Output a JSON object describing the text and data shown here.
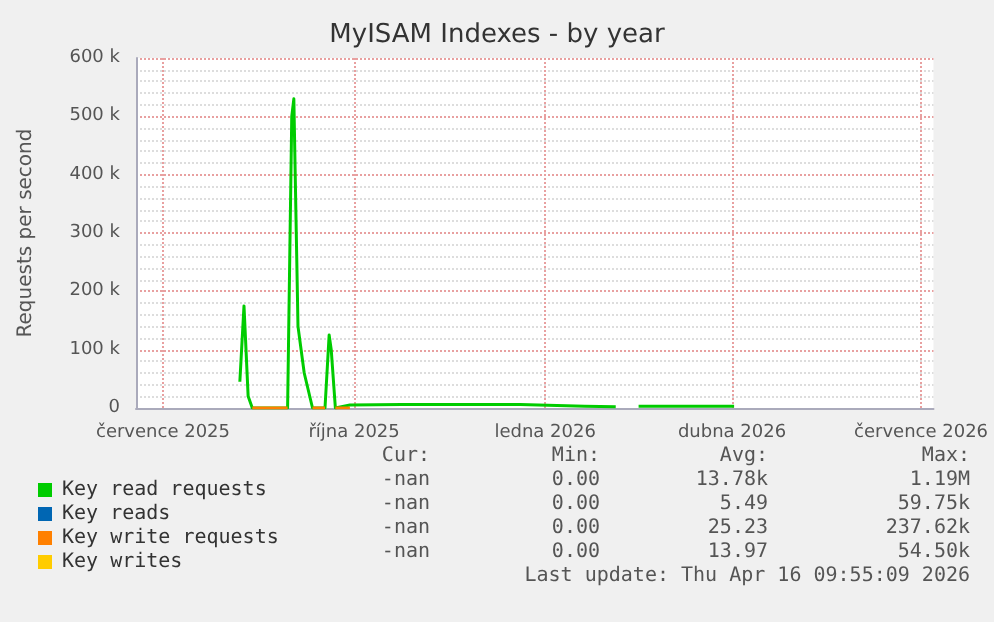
{
  "chart_data": {
    "type": "line",
    "title": "MyISAM Indexes - by year",
    "ylabel": "Requests per second",
    "xlim": [
      "2025-06-18",
      "2026-07-07"
    ],
    "xticks": [
      {
        "value": "2025-07-01",
        "label": "července 2025"
      },
      {
        "value": "2025-10-01",
        "label": "října 2025"
      },
      {
        "value": "2026-01-01",
        "label": "ledna 2026"
      },
      {
        "value": "2026-04-01",
        "label": "dubna 2026"
      },
      {
        "value": "2026-07-01",
        "label": "července 2026"
      }
    ],
    "ylim": [
      0,
      600000
    ],
    "yticks": [
      {
        "value": 0,
        "label": "0"
      },
      {
        "value": 100000,
        "label": "100 k"
      },
      {
        "value": 200000,
        "label": "200 k"
      },
      {
        "value": 300000,
        "label": "300 k"
      },
      {
        "value": 400000,
        "label": "400 k"
      },
      {
        "value": 500000,
        "label": "500 k"
      },
      {
        "value": 600000,
        "label": "600 k"
      }
    ],
    "x": [
      "2025-08-07",
      "2025-08-09",
      "2025-08-11",
      "2025-08-13",
      "2025-08-30",
      "2025-09-01",
      "2025-09-02",
      "2025-09-04",
      "2025-09-07",
      "2025-09-11",
      "2025-09-17",
      "2025-09-19",
      "2025-09-20",
      "2025-09-22",
      "2025-09-29",
      "2025-10-24",
      "2025-11-21",
      "2025-12-20",
      "2026-01-20",
      "2026-02-04",
      "2026-02-11",
      "2026-02-15",
      "2026-04-02"
    ],
    "series": [
      {
        "name": "Key read requests",
        "color": "#00cc00",
        "values": [
          45000,
          175000,
          20000,
          0,
          0,
          500000,
          530000,
          140000,
          60000,
          0,
          0,
          125000,
          100000,
          0,
          5000,
          6000,
          6000,
          6000,
          3000,
          2000,
          null,
          3000,
          3000
        ]
      },
      {
        "name": "Key reads",
        "color": "#0066b3",
        "values": [
          null,
          null,
          null,
          null,
          null,
          null,
          null,
          null,
          null,
          null,
          null,
          null,
          null,
          null,
          null,
          null,
          null,
          null,
          null,
          null,
          null,
          null,
          null
        ]
      },
      {
        "name": "Key write requests",
        "color": "#ff8000",
        "values": [
          null,
          null,
          null,
          0,
          0,
          null,
          null,
          null,
          null,
          0,
          0,
          null,
          null,
          0,
          0,
          null,
          null,
          null,
          null,
          null,
          null,
          null,
          null
        ]
      },
      {
        "name": "Key writes",
        "color": "#ffcc00",
        "values": [
          null,
          null,
          null,
          null,
          null,
          null,
          null,
          null,
          null,
          null,
          null,
          null,
          null,
          null,
          null,
          null,
          null,
          null,
          null,
          null,
          null,
          null,
          null
        ]
      }
    ],
    "grid": true,
    "legend": "bottom",
    "marker": "none",
    "line_style": "solid",
    "annotations": [
      "Cur:",
      "Min:",
      "Avg:",
      "Max:",
      "-nan",
      "0.00",
      "13.78k",
      "1.19M",
      "-nan",
      "0.00",
      "5.49",
      "59.75k",
      "-nan",
      "0.00",
      "25.23",
      "237.62k",
      "-nan",
      "0.00",
      "13.97",
      "54.50k",
      "Last update: Thu Apr 16 09:55:09 2026"
    ]
  }
}
